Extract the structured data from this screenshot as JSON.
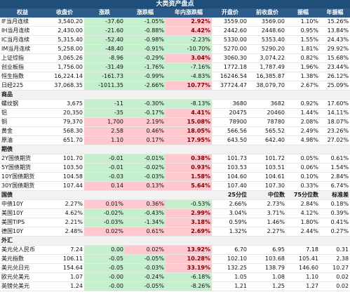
{
  "title": "大类资产盘点",
  "headers": [
    "权益",
    "收盘价",
    "涨跌",
    "涨跌幅",
    "年内涨跌幅",
    "开盘价",
    "前收盘价",
    "振幅",
    "年振幅"
  ],
  "equity_rows": [
    [
      "IF当月连续",
      "3,540.20",
      "-37.60",
      "-1.05%",
      "2.92%",
      "3559.00",
      "3569.00",
      "1.10%",
      "15.26%"
    ],
    [
      "IH当月连续",
      "2,430.00",
      "-21.60",
      "-0.88%",
      "4.42%",
      "2442.60",
      "2448.60",
      "0.95%",
      "13.84%"
    ],
    [
      "IC当月连续",
      "5,315.40",
      "-52.40",
      "-0.98%",
      "-2.23%",
      "5330.00",
      "5353.40",
      "1.55%",
      "24.43%"
    ],
    [
      "IM当月连续",
      "5,258.00",
      "-48.40",
      "-0.91%",
      "-10.70%",
      "5270.00",
      "5290.20",
      "1.81%",
      "29.92%"
    ],
    [
      "上证综指",
      "3,065.26",
      "-8.96",
      "-0.29%",
      "3.04%",
      "3060.30",
      "3,074.22",
      "0.82%",
      "15.68%"
    ],
    [
      "创业板指",
      "1,756.00",
      "-31.49",
      "-1.76%",
      "-7.16%",
      "1772.18",
      "1,787.49",
      "1.96%",
      "23.44%"
    ],
    [
      "恒生指数",
      "16,224.14",
      "-161.73",
      "-0.99%",
      "-4.83%",
      "16246.54",
      "16,385.87",
      "1.38%",
      "26.12%"
    ],
    [
      "日经225",
      "37,068.35",
      "-1011.35",
      "-2.66%",
      "10.77%",
      "37724.47",
      "38,079.70",
      "2.67%",
      "25.09%"
    ]
  ],
  "commodity_label": "商品",
  "commodity_rows": [
    [
      "螺纹钢",
      "3,675",
      "-11",
      "-0.30%",
      "-8.13%",
      "3680",
      "3682",
      "0.92%",
      "17.60%"
    ],
    [
      "铝",
      "20,350",
      "-35",
      "-0.17%",
      "4.41%",
      "20475",
      "20460",
      "1.44%",
      "14.11%"
    ],
    [
      "铜",
      "79,370",
      "1,700",
      "2.19%",
      "15.08%",
      "78900",
      "78780",
      "2.08%",
      "18.07%"
    ],
    [
      "黄金",
      "568.30",
      "2.58",
      "0.46%",
      "18.05%",
      "566.56",
      "565.52",
      "2.49%",
      "23.26%"
    ],
    [
      "原油",
      "651.70",
      "1.10",
      "0.17%",
      "17.95%",
      "643.50",
      "642.40",
      "4.98%",
      "27.02%"
    ]
  ],
  "futures_label": "期债",
  "futures_rows": [
    [
      "2Y国债期货",
      "101.70",
      "-0.01",
      "-0.01%",
      "0.38%",
      "101.73",
      "101.72",
      "0.05%",
      "0.61%"
    ],
    [
      "5Y国债期货",
      "103.50",
      "-0.01",
      "-0.02%",
      "0.93%",
      "103.53",
      "103.51",
      "0.06%",
      "1.54%"
    ],
    [
      "10Y国债期货",
      "104.58",
      "-0.03",
      "-0.03%",
      "1.58%",
      "104.60",
      "104.61",
      "0.10%",
      "2.84%"
    ],
    [
      "30Y国债期货",
      "107.44",
      "0.14",
      "0.13%",
      "5.64%",
      "107.40",
      "107.30",
      "0.33%",
      "6.74%"
    ]
  ],
  "bond_header": [
    "国债",
    "",
    "",
    "",
    "",
    "25分位",
    "中位数",
    "75分位数",
    "标准差"
  ],
  "bond_rows": [
    [
      "中债10Y",
      "2.27%",
      "0.01%",
      "0.36%",
      "-0.53%",
      "2.66%",
      "2.73%",
      "2.84%",
      "0.18%"
    ],
    [
      "美国10Y",
      "4.62%",
      "-0.02%",
      "-0.43%",
      "2.99%",
      "3.04%",
      "3.71%",
      "4.12%",
      "0.39%"
    ],
    [
      "美国TIPS",
      "2.21%",
      "-0.03%",
      "-1.34%",
      "3.18%",
      "0.59%",
      "1.46%",
      "1.80%",
      "0.41%"
    ],
    [
      "德国10Y",
      "2.48%",
      "0.02%",
      "0.61%",
      "2.69%",
      "1.32%",
      "2.27%",
      "2.44%",
      "0.27%"
    ]
  ],
  "fx_label": "外汇",
  "fx_rows": [
    [
      "美元兑人民币",
      "7.24",
      "0.00",
      "0.02%",
      "13.92%",
      "6.70",
      "6.95",
      "7.18",
      "0.31"
    ],
    [
      "美元指数",
      "106.11",
      "-0.05",
      "-0.05%",
      "10.28%",
      "102.10",
      "103.68",
      "105.41",
      "2.38"
    ],
    [
      "美元兑日元",
      "154.64",
      "-0.05",
      "-0.03%",
      "33.19%",
      "132.25",
      "138.79",
      "146.60",
      "10.27"
    ],
    [
      "欧元兑美元",
      "1.07",
      "-0.00",
      "-0.24%",
      "-6.18%",
      "1.05",
      "1.08",
      "1.10",
      "0.02"
    ],
    [
      "英镑兑美元",
      "1.24",
      "-0.00",
      "-0.05%",
      "-8.26%",
      "1.21",
      "1.25",
      "1.27",
      "0.02"
    ]
  ],
  "colors": {
    "up": "#ffc7ce",
    "down": "#c6efce",
    "header": "#2e5c8a",
    "banner": "#1f4e79"
  }
}
